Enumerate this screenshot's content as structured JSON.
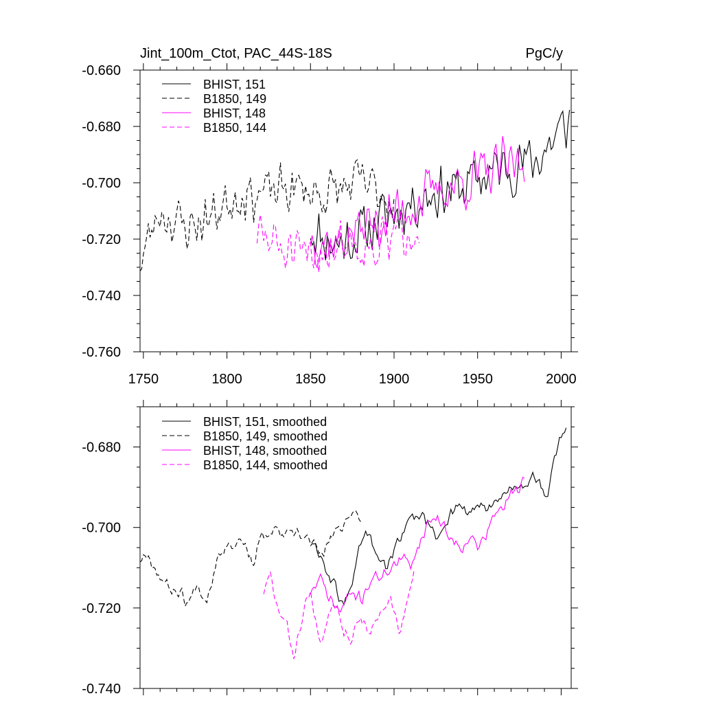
{
  "chart_data": [
    {
      "type": "line",
      "title": "Jint_100m_Ctot, PAC_44S-18S",
      "units": "PgC/y",
      "xlim": [
        1748,
        2006
      ],
      "ylim": [
        -0.76,
        -0.66
      ],
      "xticks": [
        1750,
        1800,
        1850,
        1900,
        1950,
        2000
      ],
      "yticks": [
        -0.76,
        -0.74,
        -0.72,
        -0.7,
        -0.68,
        -0.66
      ],
      "ytick_labels": [
        "-0.760",
        "-0.740",
        "-0.720",
        "-0.700",
        "-0.680",
        "-0.660"
      ],
      "grid": false,
      "legend_position": "top-left",
      "series": [
        {
          "name": "BHIST, 151",
          "color": "#000000",
          "dash": "solid",
          "x_range": [
            1850,
            2005
          ],
          "y_anchor": [
            [
              1850,
              -0.716
            ],
            [
              1865,
              -0.722
            ],
            [
              1880,
              -0.718
            ],
            [
              1895,
              -0.712
            ],
            [
              1910,
              -0.707
            ],
            [
              1925,
              -0.703
            ],
            [
              1940,
              -0.702
            ],
            [
              1955,
              -0.697
            ],
            [
              1970,
              -0.694
            ],
            [
              1985,
              -0.692
            ],
            [
              2005,
              -0.678
            ]
          ],
          "amplitude": 0.012,
          "seed": 11
        },
        {
          "name": "B1850, 149",
          "color": "#000000",
          "dash": "dash",
          "x_range": [
            1748,
            1900
          ],
          "y_anchor": [
            [
              1748,
              -0.728
            ],
            [
              1760,
              -0.71
            ],
            [
              1775,
              -0.716
            ],
            [
              1790,
              -0.712
            ],
            [
              1805,
              -0.704
            ],
            [
              1820,
              -0.704
            ],
            [
              1840,
              -0.702
            ],
            [
              1860,
              -0.704
            ],
            [
              1880,
              -0.7
            ],
            [
              1900,
              -0.706
            ]
          ],
          "amplitude": 0.011,
          "seed": 23
        },
        {
          "name": "BHIST, 148",
          "color": "#ff00ff",
          "dash": "solid",
          "x_range": [
            1850,
            1978
          ],
          "y_anchor": [
            [
              1850,
              -0.718
            ],
            [
              1865,
              -0.722
            ],
            [
              1880,
              -0.716
            ],
            [
              1895,
              -0.713
            ],
            [
              1910,
              -0.708
            ],
            [
              1925,
              -0.703
            ],
            [
              1940,
              -0.7
            ],
            [
              1955,
              -0.697
            ],
            [
              1978,
              -0.692
            ]
          ],
          "amplitude": 0.012,
          "seed": 37
        },
        {
          "name": "B1850, 144",
          "color": "#ff00ff",
          "dash": "dash",
          "x_range": [
            1818,
            1915
          ],
          "y_anchor": [
            [
              1818,
              -0.718
            ],
            [
              1830,
              -0.722
            ],
            [
              1842,
              -0.728
            ],
            [
              1855,
              -0.724
            ],
            [
              1870,
              -0.72
            ],
            [
              1885,
              -0.722
            ],
            [
              1900,
              -0.72
            ],
            [
              1915,
              -0.712
            ]
          ],
          "amplitude": 0.012,
          "seed": 51
        }
      ]
    },
    {
      "type": "line",
      "title": "",
      "units": "",
      "xlim": [
        1748,
        2006
      ],
      "ylim": [
        -0.74,
        -0.67
      ],
      "xticks": [
        1750,
        1800,
        1850,
        1900,
        1950,
        2000
      ],
      "yticks": [
        -0.74,
        -0.72,
        -0.7,
        -0.68
      ],
      "ytick_labels": [
        "-0.740",
        "-0.720",
        "-0.700",
        "-0.680"
      ],
      "grid": false,
      "legend_position": "top-left",
      "series": [
        {
          "name": "BHIST, 151, smoothed",
          "color": "#000000",
          "dash": "solid",
          "x_range": [
            1850,
            2003
          ],
          "y_anchor": [
            [
              1850,
              -0.704
            ],
            [
              1855,
              -0.706
            ],
            [
              1862,
              -0.713
            ],
            [
              1866,
              -0.716
            ],
            [
              1870,
              -0.72
            ],
            [
              1875,
              -0.713
            ],
            [
              1880,
              -0.704
            ],
            [
              1883,
              -0.7
            ],
            [
              1890,
              -0.708
            ],
            [
              1895,
              -0.71
            ],
            [
              1902,
              -0.704
            ],
            [
              1910,
              -0.698
            ],
            [
              1918,
              -0.697
            ],
            [
              1925,
              -0.703
            ],
            [
              1932,
              -0.698
            ],
            [
              1938,
              -0.694
            ],
            [
              1945,
              -0.697
            ],
            [
              1952,
              -0.694
            ],
            [
              1958,
              -0.696
            ],
            [
              1965,
              -0.692
            ],
            [
              1972,
              -0.69
            ],
            [
              1978,
              -0.69
            ],
            [
              1983,
              -0.686
            ],
            [
              1988,
              -0.69
            ],
            [
              1992,
              -0.694
            ],
            [
              1995,
              -0.684
            ],
            [
              1998,
              -0.68
            ],
            [
              2001,
              -0.677
            ],
            [
              2003,
              -0.676
            ]
          ],
          "amplitude": 0.002,
          "seed": 61
        },
        {
          "name": "B1850, 149, smoothed",
          "color": "#000000",
          "dash": "dash",
          "x_range": [
            1748,
            1880
          ],
          "y_anchor": [
            [
              1748,
              -0.708
            ],
            [
              1752,
              -0.706
            ],
            [
              1758,
              -0.711
            ],
            [
              1765,
              -0.715
            ],
            [
              1772,
              -0.716
            ],
            [
              1777,
              -0.719
            ],
            [
              1782,
              -0.714
            ],
            [
              1788,
              -0.718
            ],
            [
              1795,
              -0.706
            ],
            [
              1802,
              -0.704
            ],
            [
              1810,
              -0.703
            ],
            [
              1815,
              -0.709
            ],
            [
              1820,
              -0.703
            ],
            [
              1828,
              -0.701
            ],
            [
              1836,
              -0.702
            ],
            [
              1844,
              -0.702
            ],
            [
              1850,
              -0.703
            ],
            [
              1856,
              -0.707
            ],
            [
              1862,
              -0.703
            ],
            [
              1868,
              -0.7
            ],
            [
              1873,
              -0.697
            ],
            [
              1876,
              -0.695
            ],
            [
              1880,
              -0.7
            ]
          ],
          "amplitude": 0.002,
          "seed": 67
        },
        {
          "name": "BHIST, 148, smoothed",
          "color": "#ff00ff",
          "dash": "solid",
          "x_range": [
            1850,
            1978
          ],
          "y_anchor": [
            [
              1850,
              -0.716
            ],
            [
              1856,
              -0.713
            ],
            [
              1862,
              -0.718
            ],
            [
              1868,
              -0.721
            ],
            [
              1874,
              -0.716
            ],
            [
              1880,
              -0.718
            ],
            [
              1886,
              -0.713
            ],
            [
              1892,
              -0.712
            ],
            [
              1898,
              -0.71
            ],
            [
              1905,
              -0.708
            ],
            [
              1910,
              -0.709
            ],
            [
              1915,
              -0.704
            ],
            [
              1920,
              -0.699
            ],
            [
              1925,
              -0.697
            ],
            [
              1930,
              -0.7
            ],
            [
              1935,
              -0.703
            ],
            [
              1940,
              -0.705
            ],
            [
              1945,
              -0.702
            ],
            [
              1950,
              -0.705
            ],
            [
              1955,
              -0.702
            ],
            [
              1960,
              -0.697
            ],
            [
              1965,
              -0.695
            ],
            [
              1970,
              -0.692
            ],
            [
              1975,
              -0.69
            ],
            [
              1978,
              -0.687
            ]
          ],
          "amplitude": 0.002,
          "seed": 71
        },
        {
          "name": "B1850, 144, smoothed",
          "color": "#ff00ff",
          "dash": "dash",
          "x_range": [
            1822,
            1912
          ],
          "y_anchor": [
            [
              1822,
              -0.716
            ],
            [
              1826,
              -0.712
            ],
            [
              1830,
              -0.72
            ],
            [
              1836,
              -0.725
            ],
            [
              1840,
              -0.732
            ],
            [
              1845,
              -0.722
            ],
            [
              1850,
              -0.716
            ],
            [
              1856,
              -0.73
            ],
            [
              1862,
              -0.72
            ],
            [
              1866,
              -0.718
            ],
            [
              1870,
              -0.725
            ],
            [
              1874,
              -0.728
            ],
            [
              1880,
              -0.722
            ],
            [
              1886,
              -0.726
            ],
            [
              1892,
              -0.722
            ],
            [
              1898,
              -0.718
            ],
            [
              1904,
              -0.726
            ],
            [
              1908,
              -0.718
            ],
            [
              1912,
              -0.712
            ]
          ],
          "amplitude": 0.002,
          "seed": 83
        }
      ]
    }
  ]
}
